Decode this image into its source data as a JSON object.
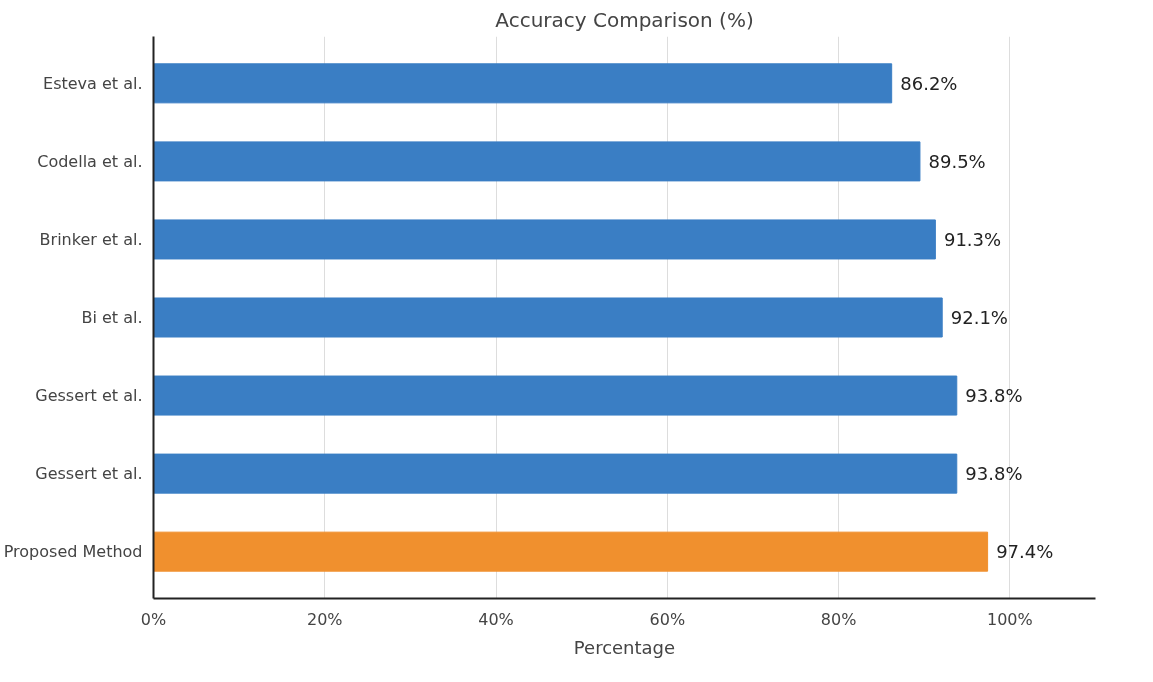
{
  "chart_data": {
    "type": "bar",
    "orientation": "horizontal",
    "title": "Accuracy Comparison (%)",
    "xlabel": "Percentage",
    "categories": [
      "Esteva et al.",
      "Codella et al.",
      "Brinker et al.",
      "Bi et al.",
      "Gessert et al.",
      "Gessert et al.",
      "Proposed Method"
    ],
    "values": [
      86.2,
      89.5,
      91.3,
      92.1,
      93.8,
      93.8,
      97.4
    ],
    "colors": [
      "#3a7ec4",
      "#3a7ec4",
      "#3a7ec4",
      "#3a7ec4",
      "#3a7ec4",
      "#3a7ec4",
      "#f0902e"
    ],
    "value_labels": [
      "86.2%",
      "89.5%",
      "91.3%",
      "92.1%",
      "93.8%",
      "93.8%",
      "97.4%"
    ],
    "xlim": [
      0,
      110
    ],
    "xticks": [
      {
        "value": 0,
        "label": "0%"
      },
      {
        "value": 20,
        "label": "20%"
      },
      {
        "value": 40,
        "label": "40%"
      },
      {
        "value": 60,
        "label": "60%"
      },
      {
        "value": 80,
        "label": "80%"
      },
      {
        "value": 100,
        "label": "100%"
      }
    ],
    "grid": "x"
  }
}
